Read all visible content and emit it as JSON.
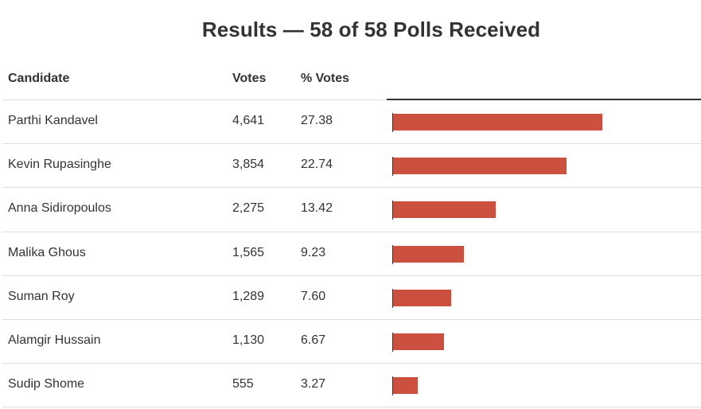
{
  "title": "Results — 58 of 58 Polls Received",
  "columns": {
    "candidate": "Candidate",
    "votes": "Votes",
    "pct": "% Votes"
  },
  "colors": {
    "bar": "#cc5040",
    "text": "#333333",
    "rule": "#dddddd"
  },
  "chart_data": {
    "type": "bar",
    "orientation": "horizontal",
    "title": "Results — 58 of 58 Polls Received",
    "categories": [
      "Parthi Kandavel",
      "Kevin Rupasinghe",
      "Anna Sidiropoulos",
      "Malika Ghous",
      "Suman Roy",
      "Alamgir Hussain",
      "Sudip Shome"
    ],
    "votes": [
      "4,641",
      "3,854",
      "2,275",
      "1,565",
      "1,289",
      "1,130",
      "555"
    ],
    "percent_labels": [
      "27.38",
      "22.74",
      "13.42",
      "9.23",
      "7.60",
      "6.67",
      "3.27"
    ],
    "values": [
      27.38,
      22.74,
      13.42,
      9.23,
      7.6,
      6.67,
      3.27
    ]
  }
}
